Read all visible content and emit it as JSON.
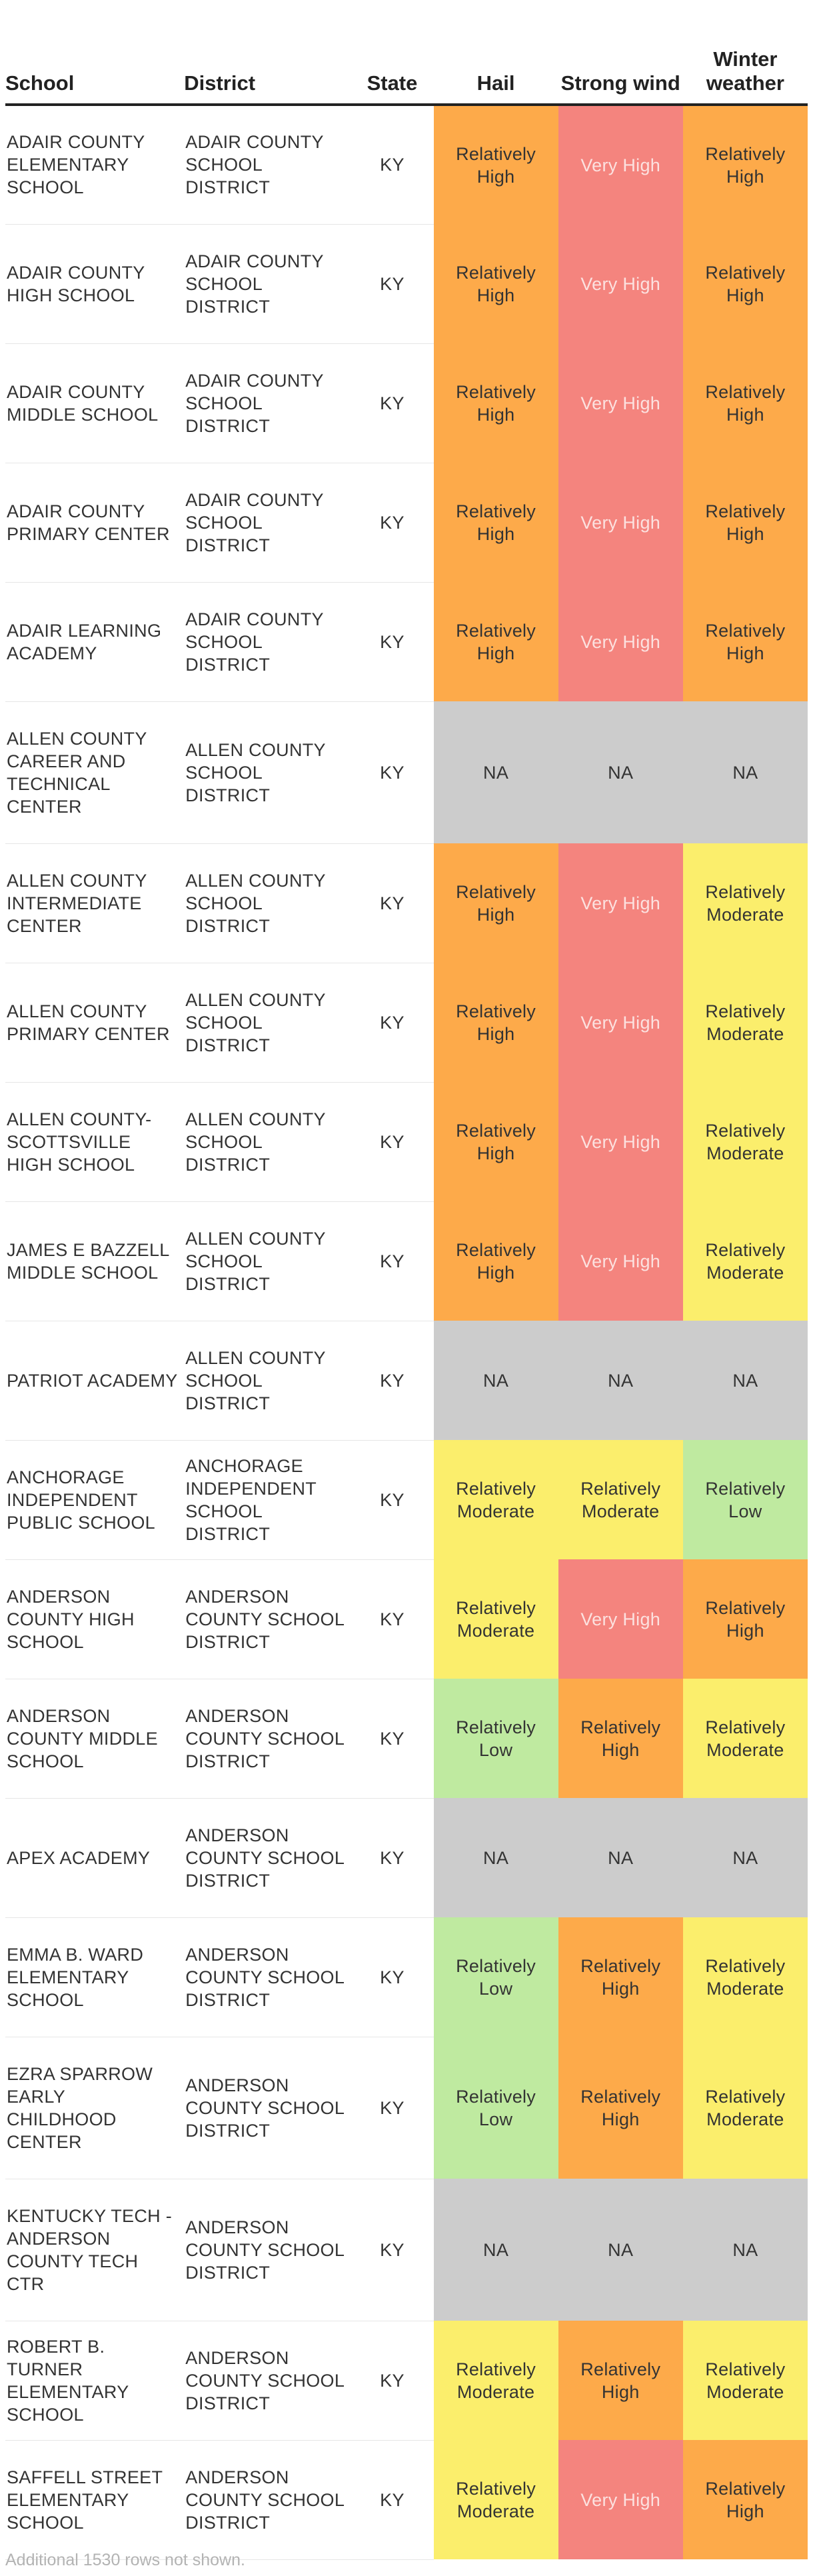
{
  "colors": {
    "Very High": "#f4847e",
    "Relatively High": "#fdaa4a",
    "Relatively Moderate": "#fbee6c",
    "Relatively Low": "#bfeaa0",
    "NA": "#cccccc",
    "very_high_text": "#fce1df",
    "default_text": "#333333"
  },
  "chart_data": {
    "type": "table",
    "columns": [
      {
        "label": "School",
        "key": "school"
      },
      {
        "label": "District",
        "key": "district"
      },
      {
        "label": "State",
        "key": "state"
      },
      {
        "label": "Hail",
        "key": "hail"
      },
      {
        "label": "Strong wind",
        "key": "wind"
      },
      {
        "label": "Winter weather",
        "key": "winter"
      }
    ],
    "rows": [
      {
        "school": "ADAIR COUNTY ELEMENTARY SCHOOL",
        "district": "ADAIR COUNTY SCHOOL DISTRICT",
        "state": "KY",
        "hail": "Relatively High",
        "wind": "Very High",
        "winter": "Relatively High"
      },
      {
        "school": "ADAIR COUNTY HIGH SCHOOL",
        "district": "ADAIR COUNTY SCHOOL DISTRICT",
        "state": "KY",
        "hail": "Relatively High",
        "wind": "Very High",
        "winter": "Relatively High"
      },
      {
        "school": "ADAIR COUNTY MIDDLE SCHOOL",
        "district": "ADAIR COUNTY SCHOOL DISTRICT",
        "state": "KY",
        "hail": "Relatively High",
        "wind": "Very High",
        "winter": "Relatively High"
      },
      {
        "school": "ADAIR COUNTY PRIMARY CENTER",
        "district": "ADAIR COUNTY SCHOOL DISTRICT",
        "state": "KY",
        "hail": "Relatively High",
        "wind": "Very High",
        "winter": "Relatively High"
      },
      {
        "school": "ADAIR LEARNING ACADEMY",
        "district": "ADAIR COUNTY SCHOOL DISTRICT",
        "state": "KY",
        "hail": "Relatively High",
        "wind": "Very High",
        "winter": "Relatively High"
      },
      {
        "school": "ALLEN COUNTY CAREER AND TECHNICAL CENTER",
        "district": "ALLEN COUNTY SCHOOL DISTRICT",
        "state": "KY",
        "hail": "NA",
        "wind": "NA",
        "winter": "NA"
      },
      {
        "school": "ALLEN COUNTY INTERMEDIATE CENTER",
        "district": "ALLEN COUNTY SCHOOL DISTRICT",
        "state": "KY",
        "hail": "Relatively High",
        "wind": "Very High",
        "winter": "Relatively Moderate"
      },
      {
        "school": "ALLEN COUNTY PRIMARY CENTER",
        "district": "ALLEN COUNTY SCHOOL DISTRICT",
        "state": "KY",
        "hail": "Relatively High",
        "wind": "Very High",
        "winter": "Relatively Moderate"
      },
      {
        "school": "ALLEN COUNTY-SCOTTSVILLE HIGH SCHOOL",
        "district": "ALLEN COUNTY SCHOOL DISTRICT",
        "state": "KY",
        "hail": "Relatively High",
        "wind": "Very High",
        "winter": "Relatively Moderate"
      },
      {
        "school": "JAMES E BAZZELL MIDDLE SCHOOL",
        "district": "ALLEN COUNTY SCHOOL DISTRICT",
        "state": "KY",
        "hail": "Relatively High",
        "wind": "Very High",
        "winter": "Relatively Moderate"
      },
      {
        "school": "PATRIOT ACADEMY",
        "district": "ALLEN COUNTY SCHOOL DISTRICT",
        "state": "KY",
        "hail": "NA",
        "wind": "NA",
        "winter": "NA"
      },
      {
        "school": "ANCHORAGE INDEPENDENT PUBLIC SCHOOL",
        "district": "ANCHORAGE INDEPENDENT SCHOOL DISTRICT",
        "state": "KY",
        "hail": "Relatively Moderate",
        "wind": "Relatively Moderate",
        "winter": "Relatively Low"
      },
      {
        "school": "ANDERSON COUNTY HIGH SCHOOL",
        "district": "ANDERSON COUNTY SCHOOL DISTRICT",
        "state": "KY",
        "hail": "Relatively Moderate",
        "wind": "Very High",
        "winter": "Relatively High"
      },
      {
        "school": "ANDERSON COUNTY MIDDLE SCHOOL",
        "district": "ANDERSON COUNTY SCHOOL DISTRICT",
        "state": "KY",
        "hail": "Relatively Low",
        "wind": "Relatively High",
        "winter": "Relatively Moderate"
      },
      {
        "school": "APEX ACADEMY",
        "district": "ANDERSON COUNTY SCHOOL DISTRICT",
        "state": "KY",
        "hail": "NA",
        "wind": "NA",
        "winter": "NA"
      },
      {
        "school": "EMMA B. WARD ELEMENTARY SCHOOL",
        "district": "ANDERSON COUNTY SCHOOL DISTRICT",
        "state": "KY",
        "hail": "Relatively Low",
        "wind": "Relatively High",
        "winter": "Relatively Moderate"
      },
      {
        "school": "EZRA SPARROW EARLY CHILDHOOD CENTER",
        "district": "ANDERSON COUNTY SCHOOL DISTRICT",
        "state": "KY",
        "hail": "Relatively Low",
        "wind": "Relatively High",
        "winter": "Relatively Moderate"
      },
      {
        "school": "KENTUCKY TECH - ANDERSON COUNTY TECH CTR",
        "district": "ANDERSON COUNTY SCHOOL DISTRICT",
        "state": "KY",
        "hail": "NA",
        "wind": "NA",
        "winter": "NA"
      },
      {
        "school": "ROBERT B. TURNER ELEMENTARY SCHOOL",
        "district": "ANDERSON COUNTY SCHOOL DISTRICT",
        "state": "KY",
        "hail": "Relatively Moderate",
        "wind": "Relatively High",
        "winter": "Relatively Moderate"
      },
      {
        "school": "SAFFELL STREET ELEMENTARY SCHOOL",
        "district": "ANDERSON COUNTY SCHOOL DISTRICT",
        "state": "KY",
        "hail": "Relatively Moderate",
        "wind": "Very High",
        "winter": "Relatively High"
      }
    ]
  },
  "footer_note": "Additional 1530 rows not shown."
}
